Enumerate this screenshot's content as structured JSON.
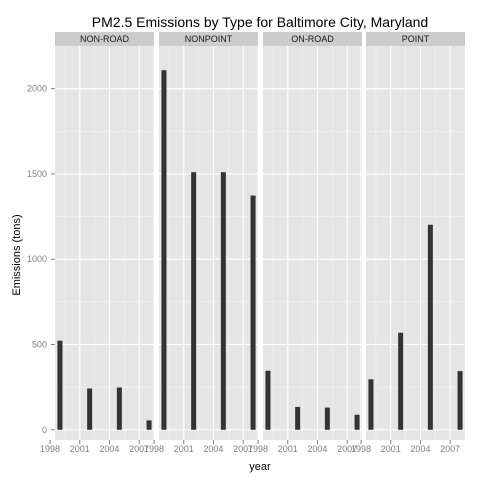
{
  "chart_data": {
    "type": "bar",
    "title": "PM2.5 Emissions by Type for Baltimore City, Maryland",
    "xlabel": "year",
    "ylabel": "Emissions (tons)",
    "x": [
      1999,
      2002,
      2005,
      2008
    ],
    "x_ticks": [
      "1998",
      "2001",
      "2004",
      "2007"
    ],
    "x_tick_values": [
      1998,
      2001,
      2004,
      2007
    ],
    "xlim": [
      1998.5,
      2008.5
    ],
    "y_ticks": [
      "0",
      "500",
      "1000",
      "1500",
      "2000"
    ],
    "y_tick_values": [
      0,
      500,
      1000,
      1500,
      2000
    ],
    "ylim": [
      -60,
      2250
    ],
    "grid": true,
    "panel_background": "#e5e5e5",
    "strip_background": "#cccccc",
    "grid_color": "#ffffff",
    "bar_color": "#333333",
    "facets": [
      {
        "name": "NON-ROAD",
        "values": [
          522,
          242,
          248,
          55
        ]
      },
      {
        "name": "NONPOINT",
        "values": [
          2108,
          1510,
          1510,
          1373
        ]
      },
      {
        "name": "ON-ROAD",
        "values": [
          346,
          134,
          130,
          88
        ]
      },
      {
        "name": "POINT",
        "values": [
          296,
          569,
          1202,
          344
        ]
      }
    ]
  }
}
